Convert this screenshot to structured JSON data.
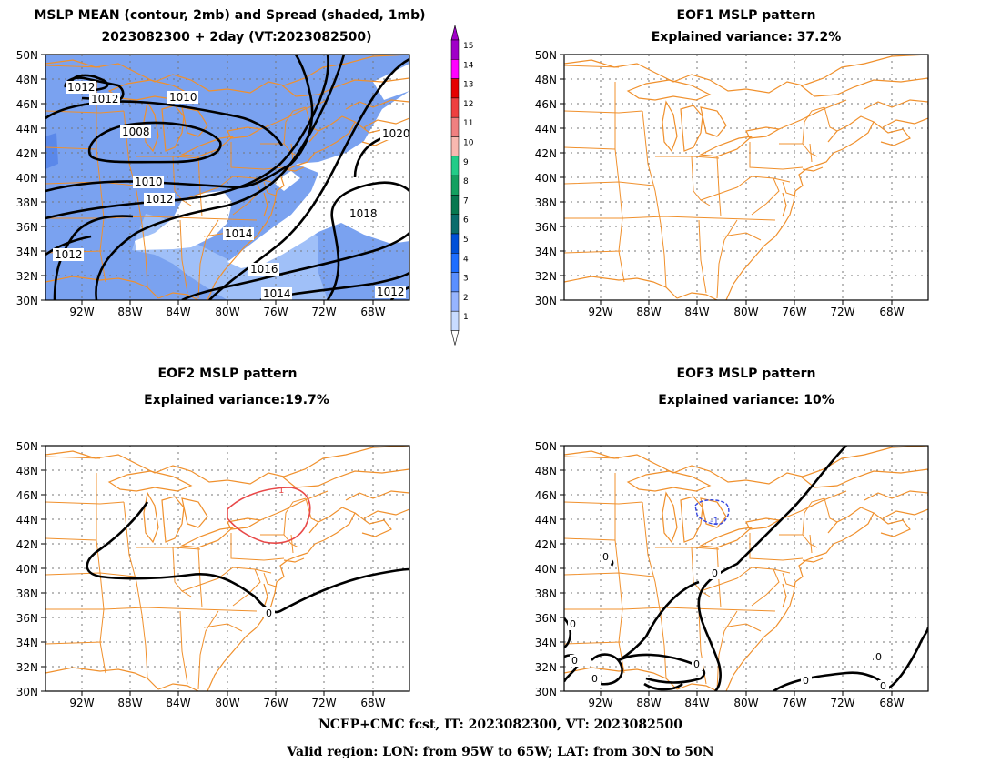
{
  "panels": {
    "mslp": {
      "title_line1": "MSLP MEAN (contour, 2mb) and Spread (shaded, 1mb)",
      "title_line2": "2023082300 + 2day (VT:2023082500)",
      "contour_labels": [
        "1012",
        "1012",
        "1010",
        "1008",
        "1010",
        "1012",
        "1014",
        "1016",
        "1014",
        "1012",
        "1012",
        "1018",
        "1020"
      ]
    },
    "eof1": {
      "title_line1": "EOF1 MSLP pattern",
      "title_line2": "Explained variance: 37.2%"
    },
    "eof2": {
      "title_line1": "EOF2 MSLP pattern",
      "title_line2": "Explained variance:19.7%",
      "contour_labels": [
        "0",
        "1"
      ]
    },
    "eof3": {
      "title_line1": "EOF3 MSLP pattern",
      "title_line2": "Explained variance: 10%",
      "contour_labels": [
        "0",
        "0",
        "0",
        "0",
        "0",
        "0",
        "0",
        "0",
        "0",
        "-1"
      ]
    }
  },
  "axes": {
    "lat_labels": [
      "50N",
      "48N",
      "46N",
      "44N",
      "42N",
      "40N",
      "38N",
      "36N",
      "34N",
      "32N",
      "30N"
    ],
    "lon_labels": [
      "92W",
      "88W",
      "84W",
      "80W",
      "76W",
      "72W",
      "68W"
    ]
  },
  "colorbar": {
    "labels": [
      "15",
      "14",
      "13",
      "12",
      "11",
      "10",
      "9",
      "8",
      "7",
      "6",
      "5",
      "4",
      "3",
      "2",
      "1"
    ],
    "colors": [
      "#a000c8",
      "#ff00ff",
      "#e60000",
      "#ee4040",
      "#f08080",
      "#f8b8b0",
      "#22cc88",
      "#14a060",
      "#087850",
      "#0a6c6c",
      "#0050d8",
      "#1e6eff",
      "#5a8fff",
      "#96b4ff",
      "#c8dcff"
    ]
  },
  "colors": {
    "coast": "#f0902c",
    "spread_base": "#a0c0f8",
    "spread_mid": "#7aa2f0",
    "eof_pos": "#e84848",
    "eof_neg": "#3848e0"
  },
  "footer": {
    "line1": "NCEP+CMC fcst, IT: 2023082300, VT: 2023082500",
    "line2": "Valid region: LON: from 95W to 65W; LAT: from 30N to 50N"
  }
}
